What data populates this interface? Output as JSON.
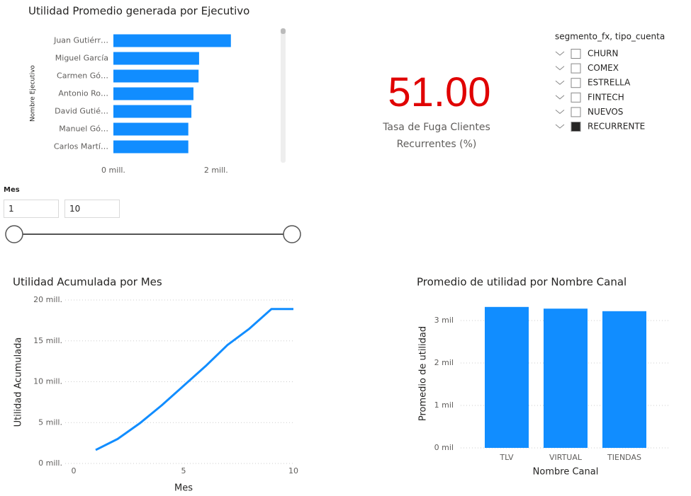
{
  "chart_data": [
    {
      "type": "hbar",
      "title": "Utilidad Promedio generada por Ejecutivo",
      "y_label": "Nombre Ejecutivo",
      "categories": [
        "Juan Gutiérr…",
        "Miguel García",
        "Carmen Gó…",
        "Antonio Ro…",
        "David Gutié…",
        "Manuel Gó…",
        "Carlos Martí…"
      ],
      "values": [
        2290000,
        1670000,
        1660000,
        1560000,
        1520000,
        1460000,
        1460000
      ],
      "color": "#118dff",
      "xlim": [
        0,
        2500000
      ],
      "xticks": [
        {
          "value": 0,
          "label": "0 mill."
        },
        {
          "value": 2000000,
          "label": "2 mill."
        }
      ],
      "grid": false
    },
    {
      "type": "line",
      "title": "Utilidad Acumulada por Mes",
      "x_label": "Mes",
      "y_label": "Utilidad Acumulada",
      "x": [
        1,
        2,
        3,
        4,
        5,
        6,
        7,
        8,
        9,
        10
      ],
      "values": [
        1650000,
        3000000,
        4900000,
        7100000,
        9500000,
        11900000,
        14500000,
        16500000,
        18900000,
        18900000
      ],
      "color": "#118dff",
      "xlim": [
        0,
        10
      ],
      "xticks": [
        0,
        5,
        10
      ],
      "ylim": [
        0,
        20000000
      ],
      "yticks": [
        {
          "value": 0,
          "label": "0 mill."
        },
        {
          "value": 5000000,
          "label": "5 mill."
        },
        {
          "value": 10000000,
          "label": "10 mill."
        },
        {
          "value": 15000000,
          "label": "15 mill."
        },
        {
          "value": 20000000,
          "label": "20 mill."
        }
      ],
      "grid": true
    },
    {
      "type": "bar",
      "title": "Promedio de utilidad por Nombre Canal",
      "x_label": "Nombre Canal",
      "y_label": "Promedio de utilidad",
      "categories": [
        "TLV",
        "VIRTUAL",
        "TIENDAS"
      ],
      "values": [
        3320,
        3280,
        3220
      ],
      "color": "#118dff",
      "ylim": [
        0,
        3500
      ],
      "yticks": [
        {
          "value": 0,
          "label": "0 mil"
        },
        {
          "value": 1000,
          "label": "1 mil"
        },
        {
          "value": 2000,
          "label": "2 mil"
        },
        {
          "value": 3000,
          "label": "3 mil"
        }
      ],
      "grid": true
    }
  ],
  "card": {
    "value": "51.00",
    "label": "Tasa de Fuga Clientes Recurrentes (%)",
    "color": "#e00000"
  },
  "segment_slicer": {
    "title": "segmento_fx, tipo_cuenta",
    "items": [
      {
        "label": "CHURN",
        "checked": false
      },
      {
        "label": "COMEX",
        "checked": false
      },
      {
        "label": "ESTRELLA",
        "checked": false
      },
      {
        "label": "FINTECH",
        "checked": false
      },
      {
        "label": "NUEVOS",
        "checked": false
      },
      {
        "label": "RECURRENTE",
        "checked": true
      }
    ]
  },
  "month_slicer": {
    "title": "Mes",
    "from": "1",
    "to": "10"
  }
}
